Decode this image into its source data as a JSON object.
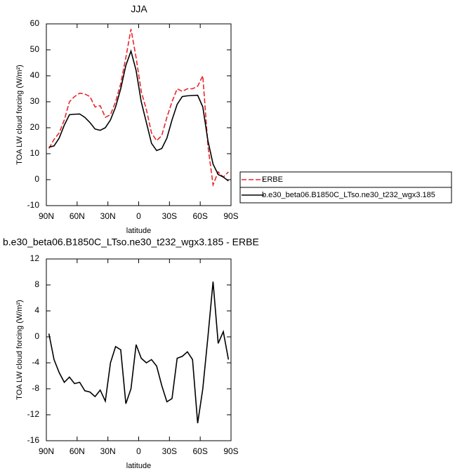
{
  "chart_data": [
    {
      "type": "line",
      "title": "JJA",
      "xlabel": "latitude",
      "ylabel": "TOA LW cloud forcing (W/m²)",
      "x": [
        87.5,
        82.5,
        77.5,
        72.5,
        67.5,
        62.5,
        57.5,
        52.5,
        47.5,
        42.5,
        37.5,
        32.5,
        27.5,
        22.5,
        17.5,
        12.5,
        7.5,
        2.5,
        -2.5,
        -7.5,
        -12.5,
        -17.5,
        -22.5,
        -27.5,
        -32.5,
        -37.5,
        -42.5,
        -47.5,
        -52.5,
        -57.5,
        -62.5,
        -67.5,
        -72.5,
        -77.5,
        -82.5,
        -87.5
      ],
      "series": [
        {
          "name": "ERBE",
          "color": "#e8262b",
          "line_style": "dashed",
          "values": [
            12,
            15.5,
            18,
            23,
            30,
            32,
            33.3,
            33,
            32,
            28,
            28.5,
            24,
            25,
            30,
            37,
            47,
            58,
            47,
            34,
            27,
            18,
            15,
            17,
            24,
            30,
            35,
            34,
            35,
            35,
            36,
            40,
            13,
            -2,
            3,
            1,
            3
          ]
        },
        {
          "name": "b.e30_beta06.B1850C_LTso.ne30_t232_wgx3.185",
          "color": "#000000",
          "line_style": "solid",
          "values": [
            12.5,
            13,
            16,
            21,
            25,
            25.2,
            25.3,
            24,
            22,
            19.5,
            19,
            20,
            23,
            28,
            35,
            44,
            49.5,
            42,
            30,
            22,
            14,
            11.2,
            12,
            16,
            23,
            29,
            32,
            32.3,
            32.4,
            32.5,
            28,
            15,
            6,
            2,
            1,
            -0.5
          ]
        }
      ],
      "xlim": [
        90,
        -90
      ],
      "xticks": [
        {
          "value": 90,
          "label": "90N"
        },
        {
          "value": 60,
          "label": "60N"
        },
        {
          "value": 30,
          "label": "30N"
        },
        0,
        {
          "value": -30,
          "label": "30S"
        },
        {
          "value": -60,
          "label": "60S"
        },
        {
          "value": -90,
          "label": "90S"
        }
      ],
      "ylim": [
        -10,
        60
      ],
      "yticks": [
        -10,
        0,
        10,
        20,
        30,
        40,
        50,
        60
      ],
      "legend": "right"
    },
    {
      "type": "line",
      "title": "b.e30_beta06.B1850C_LTso.ne30_t232_wgx3.185 - ERBE",
      "xlabel": "latitude",
      "ylabel": "TOA LW cloud forcing (W/m²)",
      "x": [
        87.5,
        82.5,
        77.5,
        72.5,
        67.5,
        62.5,
        57.5,
        52.5,
        47.5,
        42.5,
        37.5,
        32.5,
        27.5,
        22.5,
        17.5,
        12.5,
        7.5,
        2.5,
        -2.5,
        -7.5,
        -12.5,
        -17.5,
        -22.5,
        -27.5,
        -32.5,
        -37.5,
        -42.5,
        -47.5,
        -52.5,
        -57.5,
        -62.5,
        -67.5,
        -72.5,
        -77.5,
        -82.5,
        -87.5
      ],
      "series": [
        {
          "color": "#000000",
          "line_style": "solid",
          "values": [
            0.5,
            -3.5,
            -5.5,
            -7,
            -6.2,
            -7.2,
            -7,
            -8.3,
            -8.5,
            -9.2,
            -8.2,
            -9.9,
            -4,
            -1.5,
            -2,
            -10.3,
            -8,
            -1.2,
            -3.3,
            -4,
            -3.5,
            -4.5,
            -7.5,
            -10,
            -9.5,
            -3.3,
            -3,
            -2.3,
            -3.5,
            -13.3,
            -8,
            0,
            8.5,
            -1,
            0.8,
            -3.5
          ]
        }
      ],
      "xlim": [
        90,
        -90
      ],
      "xticks": [
        {
          "value": 90,
          "label": "90N"
        },
        {
          "value": 60,
          "label": "60N"
        },
        {
          "value": 30,
          "label": "30N"
        },
        0,
        {
          "value": -30,
          "label": "30S"
        },
        {
          "value": -60,
          "label": "60S"
        },
        {
          "value": -90,
          "label": "90S"
        }
      ],
      "ylim": [
        -16,
        12
      ],
      "yticks": [
        -16,
        -12,
        -8,
        -4,
        0,
        4,
        8,
        12
      ]
    }
  ]
}
